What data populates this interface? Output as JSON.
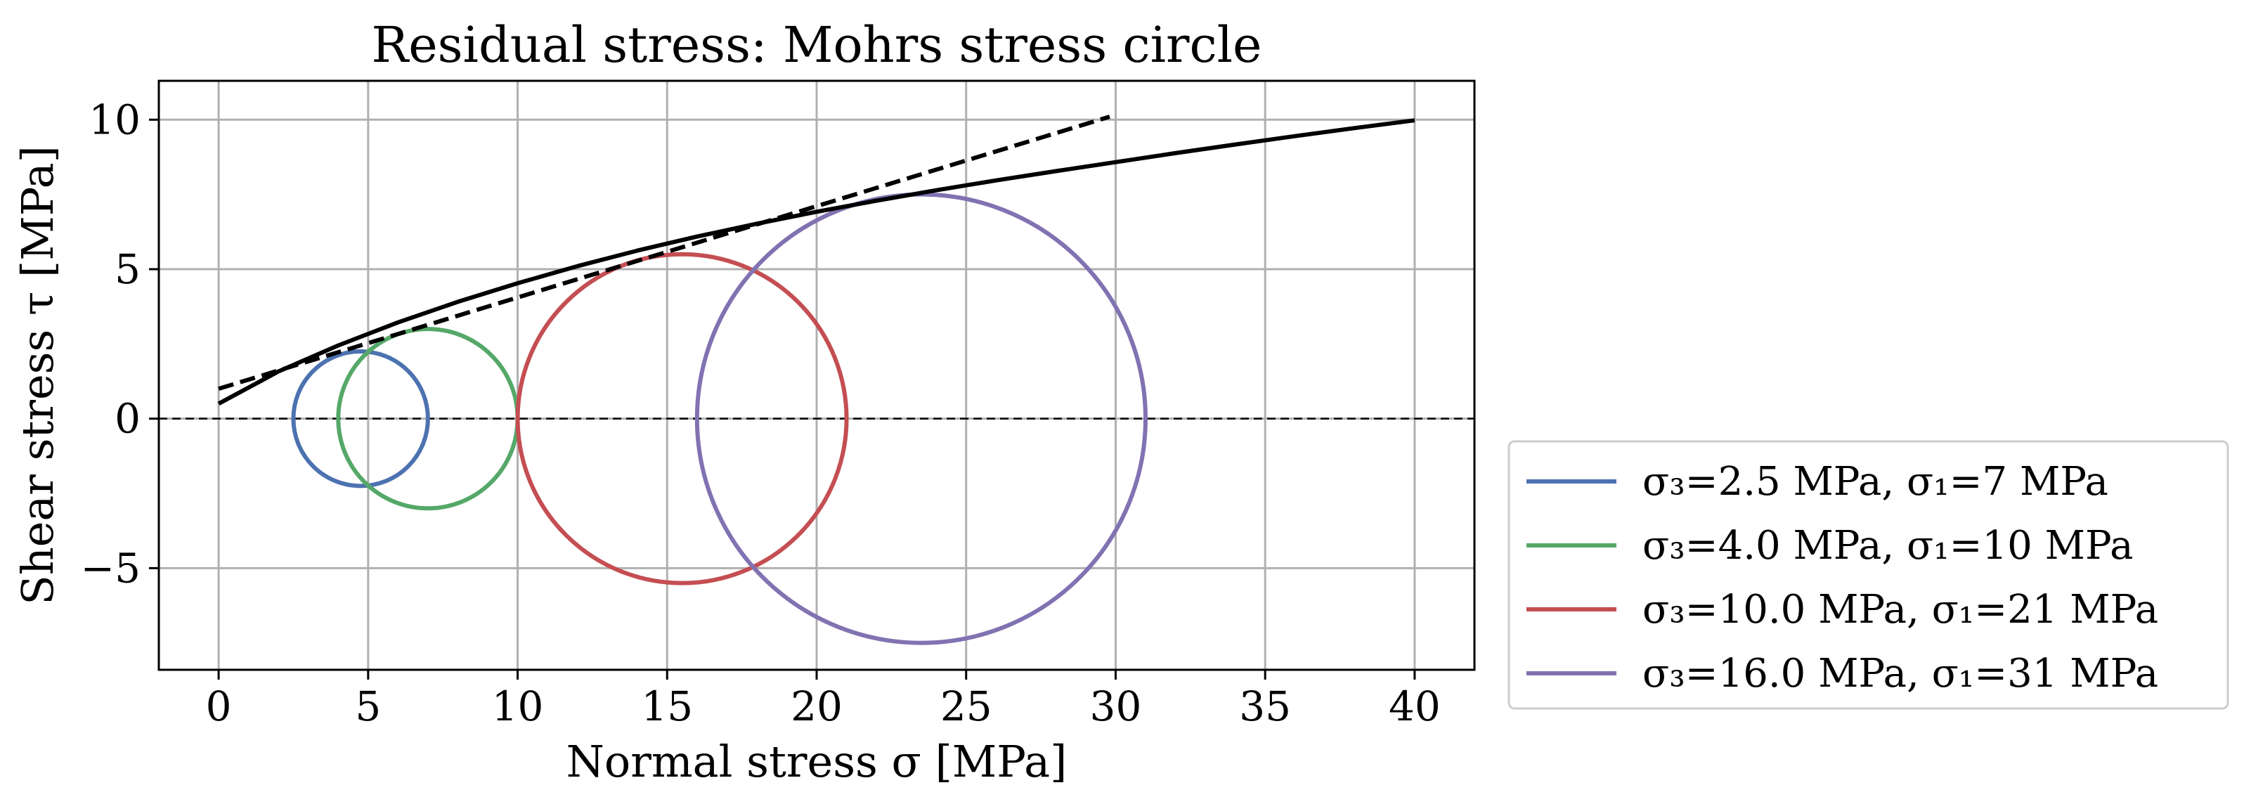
{
  "chart_data": {
    "type": "line",
    "title": "Residual stress: Mohrs stress circle",
    "xlabel": "Normal stress σ [MPa]",
    "ylabel": "Shear stress τ [MPa]",
    "xlim": [
      -2,
      42
    ],
    "ylim": [
      -8.4,
      11.3
    ],
    "xticks": [
      0,
      5,
      10,
      15,
      20,
      25,
      30,
      35,
      40
    ],
    "xtick_labels": [
      "0",
      "5",
      "10",
      "15",
      "20",
      "25",
      "30",
      "35",
      "40"
    ],
    "yticks": [
      -5,
      0,
      5,
      10
    ],
    "ytick_labels": [
      "−5",
      "0",
      "5",
      "10"
    ],
    "grid": true,
    "legend_position": "outside-right-bottom",
    "circles": [
      {
        "name": "σ₃=2.5 MPa, σ₁=7 MPa",
        "sigma3": 2.5,
        "sigma1": 7,
        "center": 4.75,
        "radius": 2.25,
        "color": "#4c72b0"
      },
      {
        "name": "σ₃=4.0 MPa, σ₁=10 MPa",
        "sigma3": 4.0,
        "sigma1": 10,
        "center": 7.0,
        "radius": 3.0,
        "color": "#55a868"
      },
      {
        "name": "σ₃=10.0 MPa, σ₁=21 MPa",
        "sigma3": 10.0,
        "sigma1": 21,
        "center": 15.5,
        "radius": 5.5,
        "color": "#c44e52"
      },
      {
        "name": "σ₃=16.0 MPa, σ₁=31 MPa",
        "sigma3": 16.0,
        "sigma1": 31,
        "center": 23.5,
        "radius": 7.5,
        "color": "#8172b2"
      }
    ],
    "envelope_curve": {
      "style": "solid",
      "color": "#000000",
      "x": [
        0,
        2,
        4,
        6,
        8,
        10,
        12,
        14,
        16,
        18,
        20,
        22,
        24,
        26,
        28,
        30,
        32,
        34,
        36,
        38,
        40
      ],
      "y": [
        0.5,
        1.58,
        2.45,
        3.22,
        3.91,
        4.53,
        5.1,
        5.62,
        6.09,
        6.52,
        6.92,
        7.29,
        7.64,
        7.97,
        8.28,
        8.58,
        8.88,
        9.17,
        9.45,
        9.72,
        9.98
      ]
    },
    "linear_envelope": {
      "style": "dashed",
      "color": "#000000",
      "x": [
        0,
        29.8
      ],
      "y": [
        1.0,
        10.1
      ]
    },
    "zero_line": {
      "y": 0,
      "style": "dashed",
      "color": "#000000"
    }
  }
}
